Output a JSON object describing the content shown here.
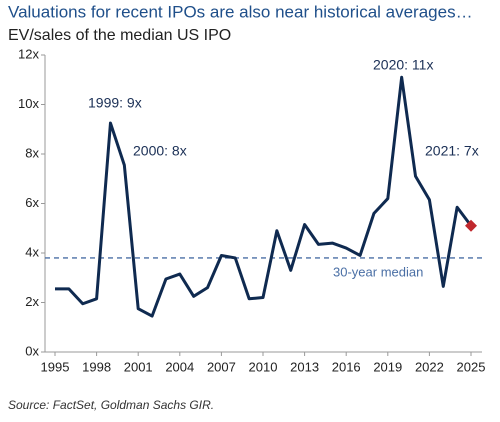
{
  "chart_data": {
    "type": "line",
    "title": "Valuations for recent IPOs are also near historical averages…",
    "subtitle": "EV/sales of the median US IPO",
    "source": "Source: FactSet, Goldman Sachs GIR.",
    "x": [
      1995,
      1996,
      1997,
      1998,
      1999,
      2000,
      2001,
      2002,
      2003,
      2004,
      2005,
      2006,
      2007,
      2008,
      2009,
      2010,
      2011,
      2012,
      2013,
      2014,
      2015,
      2016,
      2017,
      2018,
      2019,
      2020,
      2021,
      2022,
      2023,
      2024,
      2025
    ],
    "series": [
      {
        "name": "EV/sales",
        "color": "#0f2a50",
        "values": [
          2.55,
          2.55,
          1.95,
          2.15,
          9.25,
          7.55,
          1.75,
          1.45,
          2.95,
          3.15,
          2.25,
          2.6,
          3.9,
          3.8,
          2.15,
          2.2,
          4.9,
          3.3,
          5.15,
          4.35,
          4.4,
          4.2,
          3.9,
          5.6,
          6.2,
          11.1,
          7.1,
          6.15,
          2.65,
          5.85,
          5.1
        ]
      }
    ],
    "highlight_color": "#c0282d",
    "median": {
      "value": 3.8,
      "label": "30-year median",
      "color": "#4a6fa5"
    },
    "annotations": [
      "1999: 9x",
      "2000: 8x",
      "2020: 11x",
      "2021: 7x"
    ],
    "xlim": [
      1995,
      2025
    ],
    "xticks": [
      1995,
      1998,
      2001,
      2004,
      2007,
      2010,
      2013,
      2016,
      2019,
      2022,
      2025
    ],
    "ylim": [
      0,
      12
    ],
    "yticks": [
      {
        "value": 0,
        "label": "0x"
      },
      {
        "value": 2,
        "label": "2x"
      },
      {
        "value": 4,
        "label": "4x"
      },
      {
        "value": 6,
        "label": "6x"
      },
      {
        "value": 8,
        "label": "8x"
      },
      {
        "value": 10,
        "label": "10x"
      },
      {
        "value": 12,
        "label": "12x"
      }
    ],
    "grid": false
  }
}
